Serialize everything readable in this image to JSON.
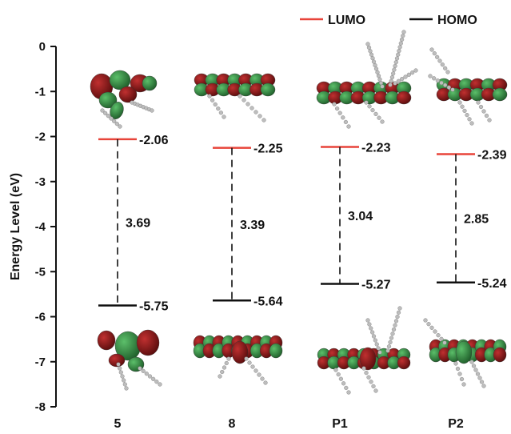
{
  "chart_data": {
    "type": "energy-level diagram",
    "ylabel": "Energy Level (eV)",
    "ylim": [
      -8,
      0
    ],
    "yticks": [
      0,
      -1,
      -2,
      -3,
      -4,
      -5,
      -6,
      -7,
      -8
    ],
    "categories": [
      "5",
      "8",
      "P1",
      "P2"
    ],
    "legend": {
      "position": "top-right",
      "items": [
        {
          "label": "LUMO",
          "color": "#e8443a"
        },
        {
          "label": "HOMO",
          "color": "#111111"
        }
      ]
    },
    "series": [
      {
        "name": "LUMO",
        "values": [
          -2.06,
          -2.25,
          -2.23,
          -2.39
        ],
        "labels": [
          "-2.06",
          "-2.25",
          "-2.23",
          "-2.39"
        ]
      },
      {
        "name": "HOMO",
        "values": [
          -5.75,
          -5.64,
          -5.27,
          -5.24
        ],
        "labels": [
          "-5.75",
          "-5.64",
          "-5.27",
          "-5.24"
        ]
      }
    ],
    "band_gaps": [
      "3.69",
      "3.39",
      "3.04",
      "2.85"
    ],
    "orbital_colors": {
      "positive": "#7a1414",
      "negative": "#2f8a3e",
      "atoms": "#bdbdbd"
    },
    "grid": false
  }
}
